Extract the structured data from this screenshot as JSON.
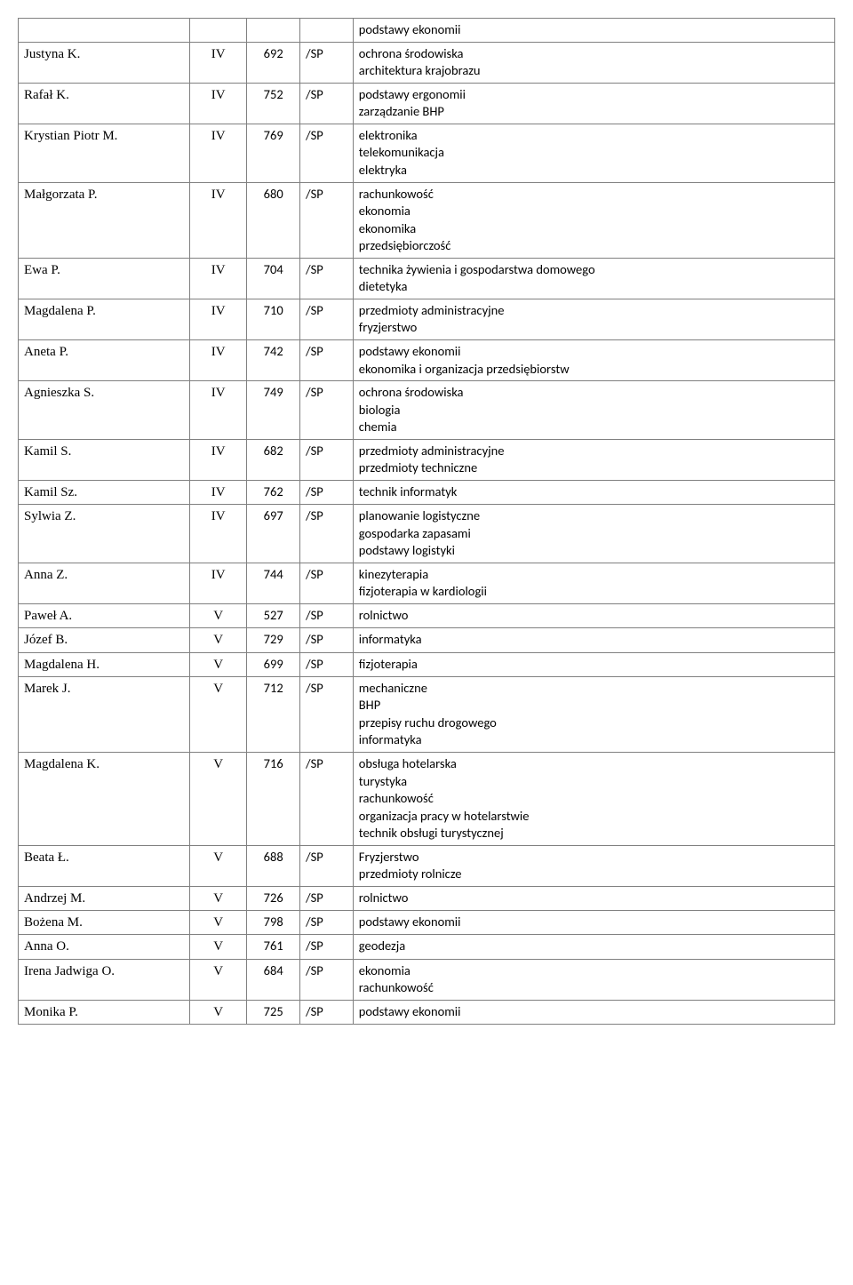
{
  "table": {
    "border_color": "#808080",
    "serif_font": "Times New Roman",
    "sans_font": "Calibri",
    "font_size_serif": 15,
    "font_size_sans": 14.5,
    "rows": [
      {
        "name": "",
        "col": "",
        "num": "",
        "sp": "",
        "desc": "podstawy ekonomii"
      },
      {
        "name": "Justyna K.",
        "col": "IV",
        "num": "692",
        "sp": "/SP",
        "desc": "ochrona środowiska\n architektura krajobrazu"
      },
      {
        "name": "Rafał K.",
        "col": "IV",
        "num": "752",
        "sp": "/SP",
        "desc": "podstawy ergonomii\nzarządzanie BHP"
      },
      {
        "name": "Krystian Piotr M.",
        "col": "IV",
        "num": "769",
        "sp": "/SP",
        "desc": "elektronika\ntelekomunikacja\nelektryka"
      },
      {
        "name": "Małgorzata P.",
        "col": "IV",
        "num": "680",
        "sp": "/SP",
        "desc": "rachunkowość\nekonomia\nekonomika\nprzedsiębiorczość"
      },
      {
        "name": "Ewa P.",
        "col": "IV",
        "num": "704",
        "sp": "/SP",
        "desc": "technika żywienia i gospodarstwa domowego\n dietetyka"
      },
      {
        "name": "Magdalena P.",
        "col": "IV",
        "num": "710",
        "sp": "/SP",
        "desc": "przedmioty administracyjne\nfryzjerstwo"
      },
      {
        "name": "Aneta P.",
        "col": "IV",
        "num": "742",
        "sp": "/SP",
        "desc": "podstawy ekonomii\nekonomika i organizacja przedsiębiorstw"
      },
      {
        "name": "Agnieszka S.",
        "col": "IV",
        "num": "749",
        "sp": "/SP",
        "desc": "ochrona środowiska\nbiologia\nchemia"
      },
      {
        "name": "Kamil S.",
        "col": "IV",
        "num": "682",
        "sp": "/SP",
        "desc": "przedmioty administracyjne\nprzedmioty  techniczne"
      },
      {
        "name": "Kamil Sz.",
        "col": "IV",
        "num": "762",
        "sp": "/SP",
        "desc": "technik informatyk"
      },
      {
        "name": "Sylwia Z.",
        "col": "IV",
        "num": "697",
        "sp": "/SP",
        "desc": "planowanie logistyczne\ngospodarka zapasami\n podstawy logistyki"
      },
      {
        "name": "Anna Z.",
        "col": "IV",
        "num": "744",
        "sp": "/SP",
        "desc": "kinezyterapia\nfizjoterapia w kardiologii"
      },
      {
        "name": "Paweł A.",
        "col": "V",
        "num": "527",
        "sp": "/SP",
        "desc": "rolnictwo"
      },
      {
        "name": "Józef B.",
        "col": "V",
        "num": "729",
        "sp": "/SP",
        "desc": "informatyka"
      },
      {
        "name": "Magdalena H.",
        "col": "V",
        "num": "699",
        "sp": "/SP",
        "desc": "fizjoterapia"
      },
      {
        "name": "Marek J.",
        "col": "V",
        "num": "712",
        "sp": "/SP",
        "desc": "mechaniczne\nBHP\nprzepisy ruchu drogowego\ninformatyka"
      },
      {
        "name": "Magdalena K.",
        "col": "V",
        "num": "716",
        "sp": "/SP",
        "desc": "obsługa hotelarska\nturystyka\nrachunkowość\norganizacja pracy w hotelarstwie\ntechnik obsługi turystycznej"
      },
      {
        "name": "Beata Ł.",
        "col": "V",
        "num": "688",
        "sp": "/SP",
        "desc": "Fryzjerstwo\n przedmioty rolnicze"
      },
      {
        "name": "Andrzej M.",
        "col": "V",
        "num": "726",
        "sp": "/SP",
        "desc": "rolnictwo"
      },
      {
        "name": "Bożena M.",
        "col": "V",
        "num": "798",
        "sp": "/SP",
        "desc": "podstawy ekonomii"
      },
      {
        "name": "Anna O.",
        "col": "V",
        "num": "761",
        "sp": "/SP",
        "desc": "geodezja"
      },
      {
        "name": "Irena Jadwiga O.",
        "col": "V",
        "num": "684",
        "sp": "/SP",
        "desc": "ekonomia\n rachunkowość"
      },
      {
        "name": "Monika P.",
        "col": "V",
        "num": "725",
        "sp": "/SP",
        "desc": "podstawy ekonomii"
      }
    ]
  }
}
